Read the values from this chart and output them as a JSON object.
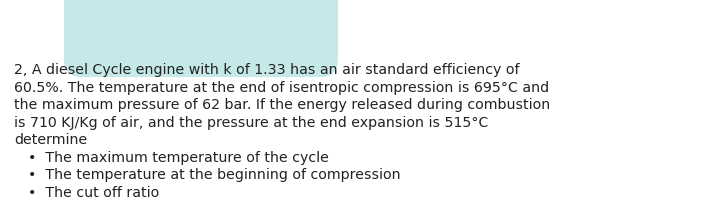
{
  "background_color": "#ffffff",
  "blob_color": "#c5e8e8",
  "main_text_lines": [
    "2, A diesel Cycle engine with k of 1.33 has an air standard efficiency of",
    "60.5%. The temperature at the end of isentropic compression is 695°C and",
    "the maximum pressure of 62 bar. If the energy released during combustion",
    "is 710 KJ/Kg of air, and the pressure at the end expansion is 515°C",
    "determine"
  ],
  "bullet_points": [
    "The maximum temperature of the cycle",
    "The temperature at the beginning of compression",
    "The cut off ratio"
  ],
  "font_size": 10.2,
  "text_color": "#222222",
  "font_family": "DejaVu Sans"
}
